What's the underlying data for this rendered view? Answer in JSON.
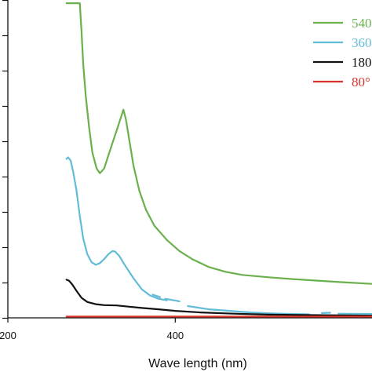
{
  "chart_data": {
    "type": "line",
    "title": "",
    "xlabel": "Wave length (nm)",
    "ylabel": "",
    "xlim": [
      200,
      635
    ],
    "ylim": [
      0,
      1
    ],
    "x_ticks": [
      {
        "value": 200,
        "label": "200"
      },
      {
        "value": 400,
        "label": "400"
      }
    ],
    "y_minor_tick_count": 9,
    "grid": false,
    "legend_position": "top-right",
    "series": [
      {
        "name": "540",
        "color": "#6ab04c",
        "segments": [
          [
            [
              270,
              0.99
            ],
            [
              286,
              0.99
            ],
            [
              288,
              0.9
            ],
            [
              290,
              0.8
            ],
            [
              293,
              0.7
            ],
            [
              297,
              0.6
            ],
            [
              301,
              0.52
            ],
            [
              306,
              0.47
            ],
            [
              310,
              0.455
            ],
            [
              315,
              0.47
            ],
            [
              320,
              0.51
            ],
            [
              325,
              0.55
            ],
            [
              330,
              0.59
            ],
            [
              335,
              0.63
            ],
            [
              338,
              0.655
            ],
            [
              341,
              0.625
            ],
            [
              345,
              0.56
            ],
            [
              350,
              0.48
            ],
            [
              357,
              0.4
            ],
            [
              365,
              0.34
            ],
            [
              375,
              0.29
            ],
            [
              390,
              0.245
            ],
            [
              405,
              0.21
            ],
            [
              420,
              0.185
            ],
            [
              440,
              0.16
            ],
            [
              460,
              0.145
            ],
            [
              480,
              0.135
            ],
            [
              510,
              0.128
            ],
            [
              540,
              0.122
            ],
            [
              570,
              0.117
            ],
            [
              600,
              0.112
            ],
            [
              635,
              0.107
            ]
          ]
        ]
      },
      {
        "name": "360",
        "color": "#62bcd8",
        "segments": [
          [
            [
              270,
              0.5
            ],
            [
              272,
              0.505
            ],
            [
              275,
              0.495
            ],
            [
              278,
              0.46
            ],
            [
              282,
              0.4
            ],
            [
              286,
              0.32
            ],
            [
              290,
              0.25
            ],
            [
              295,
              0.2
            ],
            [
              300,
              0.175
            ],
            [
              305,
              0.167
            ],
            [
              310,
              0.172
            ],
            [
              315,
              0.185
            ],
            [
              320,
              0.2
            ],
            [
              325,
              0.21
            ],
            [
              328,
              0.209
            ],
            [
              333,
              0.195
            ],
            [
              340,
              0.165
            ],
            [
              350,
              0.125
            ],
            [
              360,
              0.09
            ],
            [
              370,
              0.07
            ],
            [
              380,
              0.06
            ],
            [
              390,
              0.055
            ]
          ],
          [
            [
              373,
              0.073
            ],
            [
              382,
              0.065
            ]
          ],
          [
            [
              388,
              0.06
            ],
            [
              405,
              0.052
            ]
          ],
          [
            [
              415,
              0.037
            ],
            [
              440,
              0.027
            ],
            [
              465,
              0.022
            ],
            [
              490,
              0.017
            ],
            [
              515,
              0.014
            ],
            [
              540,
              0.012
            ],
            [
              560,
              0.011
            ]
          ],
          [
            [
              575,
              0.015
            ],
            [
              585,
              0.016
            ]
          ],
          [
            [
              595,
              0.013
            ],
            [
              635,
              0.012
            ]
          ]
        ]
      },
      {
        "name": "180",
        "color": "#111111",
        "segments": [
          [
            [
              270,
              0.12
            ],
            [
              273,
              0.117
            ],
            [
              277,
              0.105
            ],
            [
              282,
              0.085
            ],
            [
              288,
              0.063
            ],
            [
              295,
              0.05
            ],
            [
              305,
              0.043
            ],
            [
              315,
              0.04
            ],
            [
              330,
              0.039
            ],
            [
              345,
              0.035
            ],
            [
              360,
              0.031
            ],
            [
              380,
              0.027
            ],
            [
              400,
              0.022
            ],
            [
              430,
              0.017
            ],
            [
              470,
              0.013
            ],
            [
              510,
              0.01
            ],
            [
              550,
              0.009
            ],
            [
              600,
              0.008
            ],
            [
              635,
              0.007
            ]
          ]
        ]
      },
      {
        "name": "80",
        "color": "#d9342b",
        "segments": [
          [
            [
              270,
              0.004
            ],
            [
              635,
              0.004
            ]
          ]
        ]
      }
    ]
  },
  "legend": {
    "items": [
      {
        "label": "540",
        "color": "#6ab04c"
      },
      {
        "label": "360",
        "color": "#62bcd8"
      },
      {
        "label": "180",
        "color": "#111111"
      },
      {
        "label": "80°",
        "color": "#d9342b"
      }
    ]
  }
}
